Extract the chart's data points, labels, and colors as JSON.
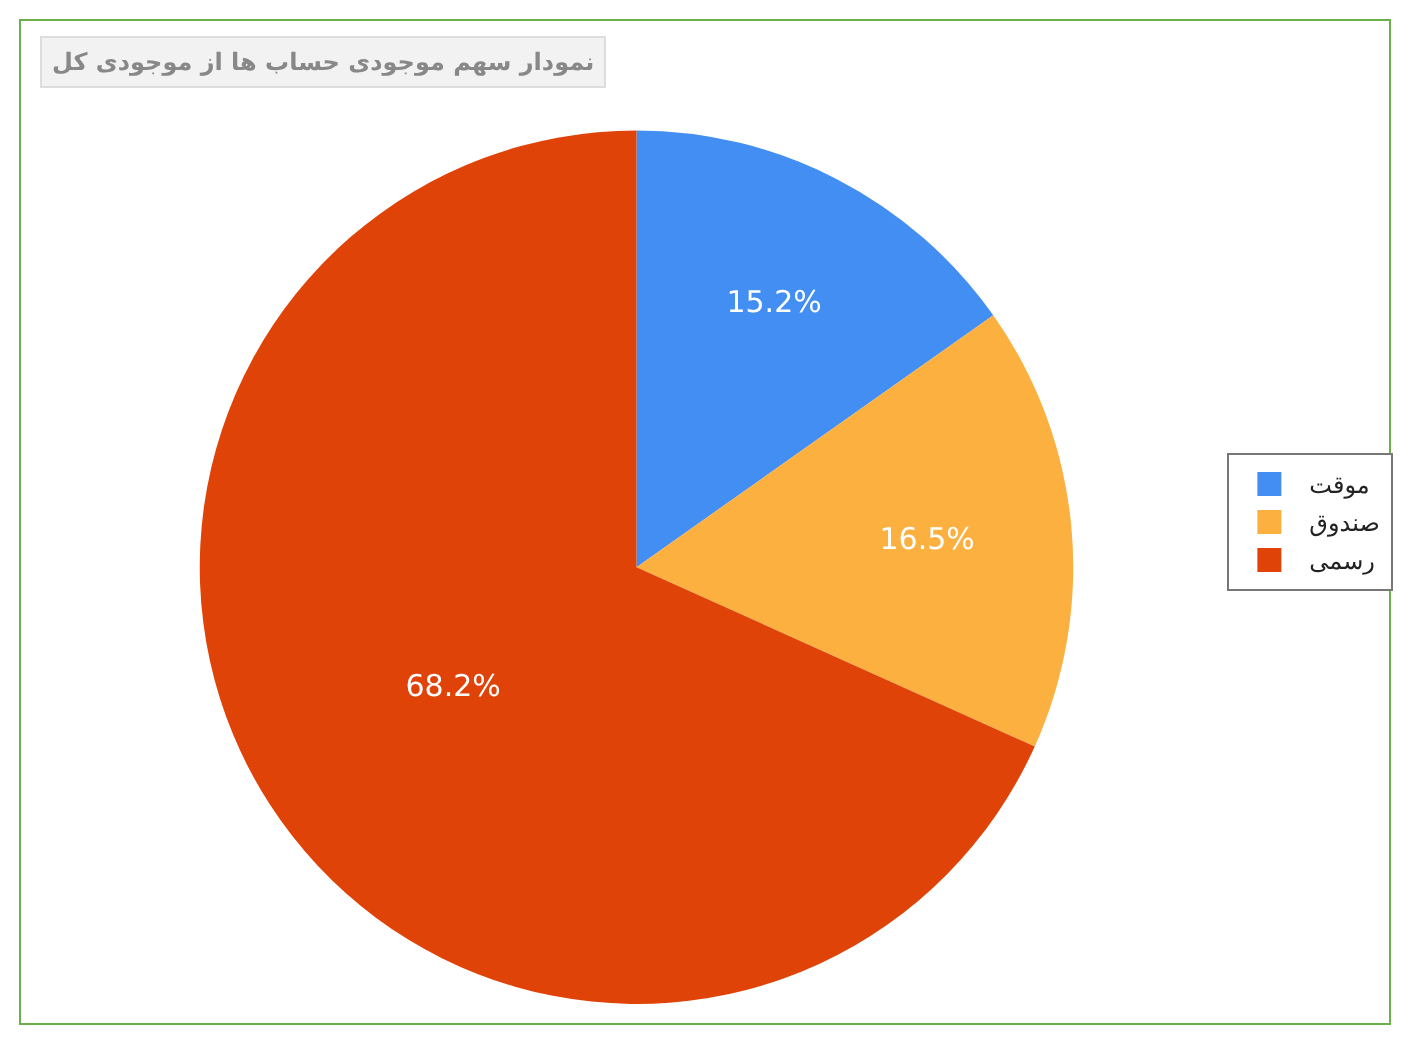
{
  "chart_data": {
    "type": "pie",
    "title": "نمودار سهم موجودی حساب ها از موجودی کل",
    "categories": [
      "موقت",
      "صندوق",
      "رسمی"
    ],
    "values": [
      15.2,
      16.5,
      68.2
    ],
    "colors": [
      "#428ef2",
      "#fbb040",
      "#e04308"
    ],
    "value_labels": [
      "15.2%",
      "16.5%",
      "68.2%"
    ],
    "legend": "right"
  }
}
